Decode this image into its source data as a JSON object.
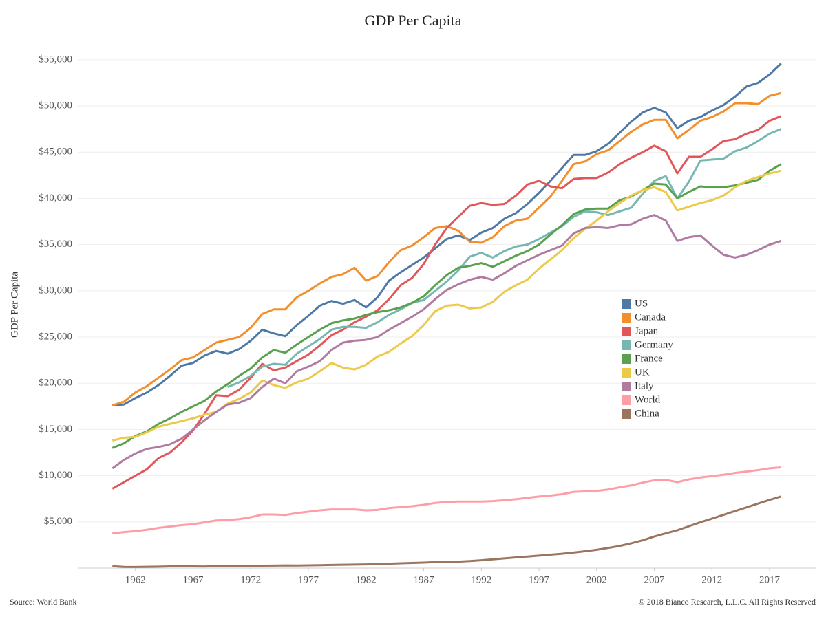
{
  "chart_data": {
    "type": "line",
    "title": "GDP Per Capita",
    "y_label": "GDP Per Capita",
    "source": "Source: World Bank",
    "credit": "© 2018 Bianco Research, L.L.C. All Rights Reserved",
    "x": [
      1960,
      1961,
      1962,
      1963,
      1964,
      1965,
      1966,
      1967,
      1968,
      1969,
      1970,
      1971,
      1972,
      1973,
      1974,
      1975,
      1976,
      1977,
      1978,
      1979,
      1980,
      1981,
      1982,
      1983,
      1984,
      1985,
      1986,
      1987,
      1988,
      1989,
      1990,
      1991,
      1992,
      1993,
      1994,
      1995,
      1996,
      1997,
      1998,
      1999,
      2000,
      2001,
      2002,
      2003,
      2004,
      2005,
      2006,
      2007,
      2008,
      2009,
      2010,
      2011,
      2012,
      2013,
      2014,
      2015,
      2016,
      2017,
      2018
    ],
    "xlim": [
      1957,
      2021
    ],
    "xticks": [
      1962,
      1967,
      1972,
      1977,
      1982,
      1987,
      1992,
      1997,
      2002,
      2007,
      2012,
      2017
    ],
    "ylim": [
      0,
      57000
    ],
    "yticks": [
      {
        "value": 5000,
        "label": "$5,000"
      },
      {
        "value": 10000,
        "label": "$10,000"
      },
      {
        "value": 15000,
        "label": "$15,000"
      },
      {
        "value": 20000,
        "label": "$20,000"
      },
      {
        "value": 25000,
        "label": "$25,000"
      },
      {
        "value": 30000,
        "label": "$30,000"
      },
      {
        "value": 35000,
        "label": "$35,000"
      },
      {
        "value": 40000,
        "label": "$40,000"
      },
      {
        "value": 45000,
        "label": "$45,000"
      },
      {
        "value": 50000,
        "label": "$50,000"
      },
      {
        "value": 55000,
        "label": "$55,000"
      }
    ],
    "grid": true,
    "series": [
      {
        "name": "US",
        "color": "#4e79a7",
        "values": [
          17600,
          17700,
          18400,
          19000,
          19800,
          20800,
          21900,
          22200,
          23000,
          23500,
          23200,
          23700,
          24600,
          25800,
          25400,
          25100,
          26300,
          27300,
          28400,
          28900,
          28600,
          29000,
          28200,
          29300,
          31100,
          32000,
          32800,
          33600,
          34600,
          35600,
          36000,
          35500,
          36300,
          36800,
          37800,
          38400,
          39400,
          40600,
          41900,
          43300,
          44700,
          44700,
          45100,
          45900,
          47100,
          48300,
          49300,
          49800,
          49300,
          47600,
          48400,
          48800,
          49500,
          50100,
          51000,
          52100,
          52500,
          53400,
          54600
        ]
      },
      {
        "name": "Canada",
        "color": "#f28e2b",
        "values": [
          17600,
          18000,
          19000,
          19700,
          20600,
          21500,
          22500,
          22800,
          23600,
          24400,
          24700,
          25000,
          26000,
          27500,
          28000,
          28000,
          29300,
          30000,
          30800,
          31500,
          31800,
          32500,
          31100,
          31600,
          33100,
          34400,
          34900,
          35800,
          36800,
          37000,
          36500,
          35300,
          35200,
          35800,
          37000,
          37600,
          37800,
          39000,
          40200,
          41900,
          43700,
          44000,
          44800,
          45200,
          46200,
          47200,
          48000,
          48500,
          48500,
          46500,
          47400,
          48400,
          48800,
          49400,
          50300,
          50300,
          50200,
          51100,
          51400
        ]
      },
      {
        "name": "Japan",
        "color": "#e15759",
        "values": [
          8600,
          9300,
          10000,
          10700,
          11900,
          12500,
          13600,
          14900,
          16700,
          18700,
          18600,
          19300,
          20600,
          22100,
          21400,
          21700,
          22400,
          23100,
          24100,
          25200,
          25800,
          26600,
          27200,
          27900,
          29100,
          30600,
          31400,
          32900,
          35000,
          36800,
          38000,
          39200,
          39500,
          39300,
          39400,
          40300,
          41500,
          41900,
          41300,
          41100,
          42100,
          42200,
          42200,
          42800,
          43700,
          44400,
          45000,
          45700,
          45100,
          42700,
          44500,
          44500,
          45300,
          46200,
          46400,
          47000,
          47400,
          48400,
          48900
        ]
      },
      {
        "name": "Germany",
        "color": "#76b7b2",
        "values": [
          null,
          null,
          null,
          null,
          null,
          null,
          null,
          null,
          null,
          null,
          19600,
          20100,
          20800,
          21800,
          22100,
          22000,
          23200,
          24000,
          24800,
          25800,
          26100,
          26100,
          26000,
          26600,
          27400,
          28000,
          28700,
          29000,
          30000,
          31000,
          32200,
          33700,
          34100,
          33600,
          34300,
          34800,
          35000,
          35600,
          36300,
          37000,
          38000,
          38600,
          38500,
          38200,
          38600,
          39000,
          40500,
          41900,
          42400,
          40000,
          41800,
          44100,
          44200,
          44300,
          45100,
          45500,
          46200,
          47000,
          47500
        ]
      },
      {
        "name": "France",
        "color": "#59a14f",
        "values": [
          13000,
          13500,
          14300,
          14800,
          15600,
          16200,
          16900,
          17500,
          18100,
          19100,
          19900,
          20800,
          21600,
          22800,
          23600,
          23300,
          24200,
          25000,
          25800,
          26500,
          26800,
          27000,
          27400,
          27700,
          27900,
          28200,
          28700,
          29400,
          30600,
          31700,
          32500,
          32700,
          33000,
          32600,
          33200,
          33800,
          34300,
          35000,
          36100,
          37100,
          38300,
          38800,
          38900,
          38900,
          39800,
          40200,
          40900,
          41600,
          41500,
          40000,
          40700,
          41300,
          41200,
          41200,
          41400,
          41700,
          42000,
          43000,
          43700
        ]
      },
      {
        "name": "UK",
        "color": "#edc948",
        "values": [
          13800,
          14100,
          14200,
          14700,
          15300,
          15600,
          15900,
          16200,
          16600,
          16900,
          17800,
          18300,
          19000,
          20300,
          19800,
          19500,
          20100,
          20500,
          21300,
          22200,
          21700,
          21500,
          22000,
          22900,
          23400,
          24300,
          25100,
          26300,
          27800,
          28400,
          28500,
          28100,
          28200,
          28800,
          29900,
          30600,
          31200,
          32400,
          33400,
          34400,
          35700,
          36700,
          37600,
          38600,
          39500,
          40300,
          40900,
          41200,
          40700,
          38700,
          39100,
          39500,
          39800,
          40300,
          41200,
          41900,
          42300,
          42700,
          43000
        ]
      },
      {
        "name": "Italy",
        "color": "#b07aa1",
        "values": [
          10800,
          11700,
          12400,
          12900,
          13100,
          13400,
          14000,
          15000,
          16000,
          16900,
          17700,
          17900,
          18400,
          19600,
          20500,
          20000,
          21300,
          21800,
          22400,
          23600,
          24400,
          24600,
          24700,
          25000,
          25800,
          26500,
          27200,
          28000,
          29100,
          30100,
          30700,
          31200,
          31500,
          31200,
          31900,
          32700,
          33300,
          33900,
          34400,
          34900,
          36200,
          36800,
          36900,
          36800,
          37100,
          37200,
          37800,
          38200,
          37600,
          35400,
          35800,
          36000,
          34900,
          33900,
          33600,
          33900,
          34400,
          35000,
          35400
        ]
      },
      {
        "name": "World",
        "color": "#ff9da7",
        "values": [
          3750,
          3900,
          4000,
          4150,
          4350,
          4500,
          4650,
          4750,
          4950,
          5150,
          5200,
          5300,
          5500,
          5800,
          5800,
          5750,
          5950,
          6100,
          6250,
          6350,
          6350,
          6350,
          6250,
          6300,
          6500,
          6600,
          6700,
          6850,
          7050,
          7150,
          7200,
          7200,
          7200,
          7250,
          7350,
          7450,
          7600,
          7750,
          7850,
          8000,
          8250,
          8300,
          8350,
          8500,
          8750,
          8950,
          9250,
          9500,
          9550,
          9300,
          9600,
          9800,
          9950,
          10100,
          10300,
          10450,
          10600,
          10800,
          10900
        ]
      },
      {
        "name": "China",
        "color": "#9c755f",
        "values": [
          200,
          130,
          120,
          140,
          160,
          190,
          210,
          190,
          180,
          200,
          230,
          240,
          250,
          260,
          270,
          290,
          280,
          300,
          320,
          340,
          360,
          380,
          400,
          430,
          470,
          520,
          560,
          600,
          650,
          660,
          700,
          760,
          850,
          950,
          1050,
          1150,
          1250,
          1350,
          1450,
          1550,
          1680,
          1820,
          1980,
          2180,
          2400,
          2680,
          3010,
          3420,
          3760,
          4100,
          4530,
          4960,
          5350,
          5760,
          6170,
          6570,
          6980,
          7380,
          7750
        ]
      }
    ]
  }
}
